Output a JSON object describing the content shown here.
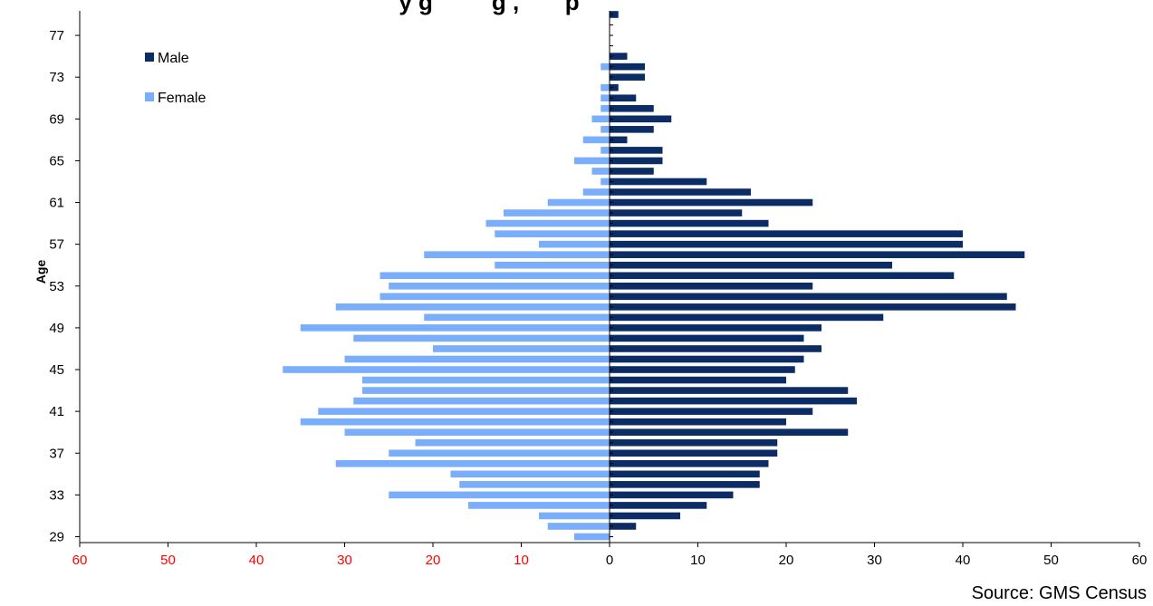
{
  "chart_data": {
    "type": "bar",
    "orientation": "horizontal",
    "layout": "population-pyramid",
    "title": "y g         g ,       p",
    "ylabel": "Age",
    "xlabel": "",
    "source": "Source: GMS Census",
    "xlim": [
      -60,
      60
    ],
    "x_ticks": [
      -60,
      -50,
      -40,
      -30,
      -20,
      -10,
      0,
      10,
      20,
      30,
      40,
      50,
      60
    ],
    "x_tick_labels": [
      "60",
      "50",
      "40",
      "30",
      "20",
      "10",
      "0",
      "10",
      "20",
      "30",
      "40",
      "50",
      "60"
    ],
    "negative_tick_color": "#ff0000",
    "positive_tick_color": "#000000",
    "ylim": [
      29,
      79
    ],
    "y_tick_labels": [
      "29",
      "33",
      "37",
      "41",
      "45",
      "49",
      "53",
      "57",
      "61",
      "65",
      "69",
      "73",
      "77"
    ],
    "legend": {
      "position": "top-left",
      "entries": [
        "Male",
        "Female"
      ]
    },
    "grid": false,
    "categories": [
      29,
      30,
      31,
      32,
      33,
      34,
      35,
      36,
      37,
      38,
      39,
      40,
      41,
      42,
      43,
      44,
      45,
      46,
      47,
      48,
      49,
      50,
      51,
      52,
      53,
      54,
      55,
      56,
      57,
      58,
      59,
      60,
      61,
      62,
      63,
      64,
      65,
      66,
      67,
      68,
      69,
      70,
      71,
      72,
      73,
      74,
      75,
      76,
      77,
      78,
      79
    ],
    "series": [
      {
        "name": "Male",
        "color": "#0c2c66",
        "values": [
          0,
          3,
          8,
          11,
          14,
          17,
          17,
          18,
          19,
          19,
          27,
          20,
          23,
          28,
          27,
          20,
          21,
          22,
          24,
          22,
          24,
          31,
          46,
          45,
          23,
          39,
          32,
          47,
          40,
          40,
          18,
          15,
          23,
          16,
          11,
          5,
          6,
          6,
          2,
          5,
          7,
          5,
          3,
          1,
          4,
          4,
          2,
          0,
          0,
          0,
          1
        ]
      },
      {
        "name": "Female",
        "color": "#7aadfa",
        "values": [
          4,
          7,
          8,
          16,
          25,
          17,
          18,
          31,
          25,
          22,
          30,
          35,
          33,
          29,
          28,
          28,
          37,
          30,
          20,
          29,
          35,
          21,
          31,
          26,
          25,
          26,
          13,
          21,
          8,
          13,
          14,
          12,
          7,
          3,
          1,
          2,
          4,
          1,
          3,
          1,
          2,
          1,
          1,
          1,
          0,
          1,
          0,
          0,
          0,
          0,
          0
        ]
      }
    ]
  }
}
